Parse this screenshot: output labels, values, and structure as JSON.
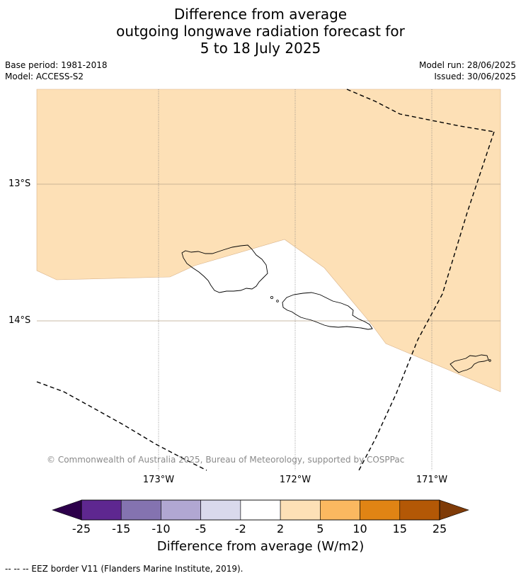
{
  "title": {
    "line1": "Difference from average",
    "line2": "outgoing longwave radiation forecast for",
    "line3": "5 to 18 July 2025"
  },
  "meta": {
    "base_period": "Base period: 1981-2018",
    "model": "Model: ACCESS-S2",
    "model_run": "Model run: 28/06/2025",
    "issued": "Issued: 30/06/2025"
  },
  "map": {
    "lat_labels": [
      "13°S",
      "14°S"
    ],
    "lon_labels": [
      "173°W",
      "172°W",
      "171°W"
    ],
    "anomaly_color": "#fde0b6",
    "copyright": "© Commonwealth of Australia 2025, Bureau of Meteorology, supported by COSPPac"
  },
  "colorbar": {
    "ticks": [
      "-25",
      "-15",
      "-10",
      "-5",
      "-2",
      "2",
      "5",
      "10",
      "15",
      "25"
    ],
    "colors": [
      "#5e2790",
      "#8473b0",
      "#b1a7d2",
      "#d9d9ec",
      "#ffffff",
      "#fde0b6",
      "#fbb860",
      "#e08414",
      "#b35806"
    ],
    "low_extend_color": "#2d004b",
    "high_extend_color": "#7f3b08",
    "label": "Difference from average (W/m2)"
  },
  "legend": {
    "eez": "--  --  -- EEZ border V11 (Flanders Marine Institute, 2019)."
  }
}
